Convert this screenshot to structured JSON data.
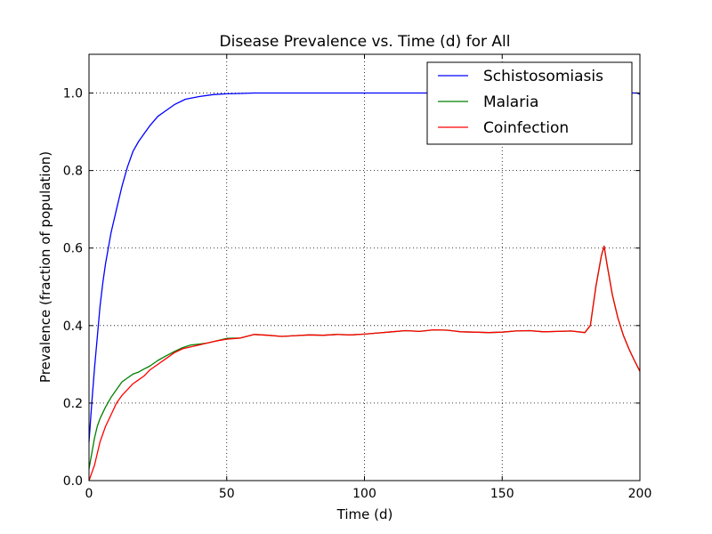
{
  "chart_data": {
    "type": "line",
    "title": "Disease Prevalence vs. Time (d) for All",
    "xlabel": "Time (d)",
    "ylabel": "Prevalence (fraction of population)",
    "xlim": [
      0,
      200
    ],
    "ylim": [
      0,
      1.1
    ],
    "xticks": [
      0,
      50,
      100,
      150,
      200
    ],
    "xtick_labels": [
      "0",
      "50",
      "100",
      "150",
      "200"
    ],
    "yticks": [
      0.0,
      0.2,
      0.4,
      0.6,
      0.8,
      1.0
    ],
    "ytick_labels": [
      "0.0",
      "0.2",
      "0.4",
      "0.6",
      "0.8",
      "1.0"
    ],
    "grid": true,
    "legend_position": "top-right",
    "series": [
      {
        "name": "Schistosomiasis",
        "color": "#0000ff",
        "x": [
          0,
          1,
          2,
          3,
          4,
          5,
          6,
          8,
          10,
          12,
          14,
          16,
          18,
          20,
          22,
          25,
          28,
          31,
          35,
          40,
          45,
          50,
          55,
          60,
          70,
          80,
          100,
          120,
          150,
          180,
          190,
          195,
          199,
          200
        ],
        "y": [
          0.1,
          0.2,
          0.29,
          0.37,
          0.45,
          0.51,
          0.56,
          0.64,
          0.7,
          0.76,
          0.81,
          0.85,
          0.875,
          0.895,
          0.915,
          0.94,
          0.955,
          0.97,
          0.984,
          0.991,
          0.996,
          0.998,
          0.999,
          1.0,
          1.0,
          1.0,
          1.0,
          1.0,
          1.0,
          1.0,
          1.0,
          1.0,
          1.0,
          0.997
        ]
      },
      {
        "name": "Malaria",
        "color": "#008000",
        "x": [
          0,
          1,
          2,
          3,
          4,
          6,
          8,
          10,
          12,
          14,
          16,
          18,
          20,
          22,
          25,
          28,
          31,
          34,
          37,
          40,
          43,
          46,
          50,
          55,
          60,
          65,
          70,
          75,
          80,
          85,
          90,
          95,
          100,
          105,
          110,
          115,
          120,
          125,
          130,
          135,
          140,
          145,
          150,
          155,
          160,
          165,
          170,
          175,
          180,
          182,
          184,
          186,
          187,
          188,
          190,
          192,
          194,
          196,
          198,
          200
        ],
        "y": [
          0.03,
          0.07,
          0.11,
          0.14,
          0.16,
          0.19,
          0.215,
          0.235,
          0.255,
          0.265,
          0.275,
          0.28,
          0.288,
          0.295,
          0.31,
          0.322,
          0.333,
          0.343,
          0.35,
          0.352,
          0.355,
          0.36,
          0.367,
          0.368,
          0.377,
          0.375,
          0.372,
          0.374,
          0.376,
          0.375,
          0.377,
          0.376,
          0.378,
          0.381,
          0.384,
          0.387,
          0.385,
          0.389,
          0.388,
          0.384,
          0.383,
          0.382,
          0.383,
          0.386,
          0.387,
          0.384,
          0.385,
          0.386,
          0.382,
          0.4,
          0.5,
          0.58,
          0.605,
          0.56,
          0.48,
          0.42,
          0.375,
          0.34,
          0.31,
          0.282
        ]
      },
      {
        "name": "Coinfection",
        "color": "#ff0000",
        "x": [
          0,
          1,
          2,
          3,
          4,
          6,
          8,
          10,
          12,
          14,
          16,
          18,
          20,
          22,
          25,
          28,
          31,
          34,
          37,
          40,
          43,
          46,
          50,
          55,
          60,
          65,
          70,
          75,
          80,
          85,
          90,
          95,
          100,
          105,
          110,
          115,
          120,
          125,
          130,
          135,
          140,
          145,
          150,
          155,
          160,
          165,
          170,
          175,
          180,
          182,
          184,
          186,
          187,
          188,
          190,
          192,
          194,
          196,
          198,
          200
        ],
        "y": [
          0.0,
          0.02,
          0.04,
          0.07,
          0.1,
          0.14,
          0.17,
          0.2,
          0.22,
          0.235,
          0.25,
          0.26,
          0.27,
          0.285,
          0.3,
          0.315,
          0.33,
          0.34,
          0.345,
          0.35,
          0.355,
          0.36,
          0.365,
          0.368,
          0.377,
          0.375,
          0.372,
          0.374,
          0.376,
          0.375,
          0.377,
          0.376,
          0.378,
          0.381,
          0.384,
          0.387,
          0.385,
          0.389,
          0.388,
          0.384,
          0.383,
          0.382,
          0.383,
          0.386,
          0.387,
          0.384,
          0.385,
          0.386,
          0.382,
          0.4,
          0.5,
          0.58,
          0.605,
          0.56,
          0.48,
          0.42,
          0.375,
          0.34,
          0.31,
          0.282
        ]
      }
    ]
  }
}
